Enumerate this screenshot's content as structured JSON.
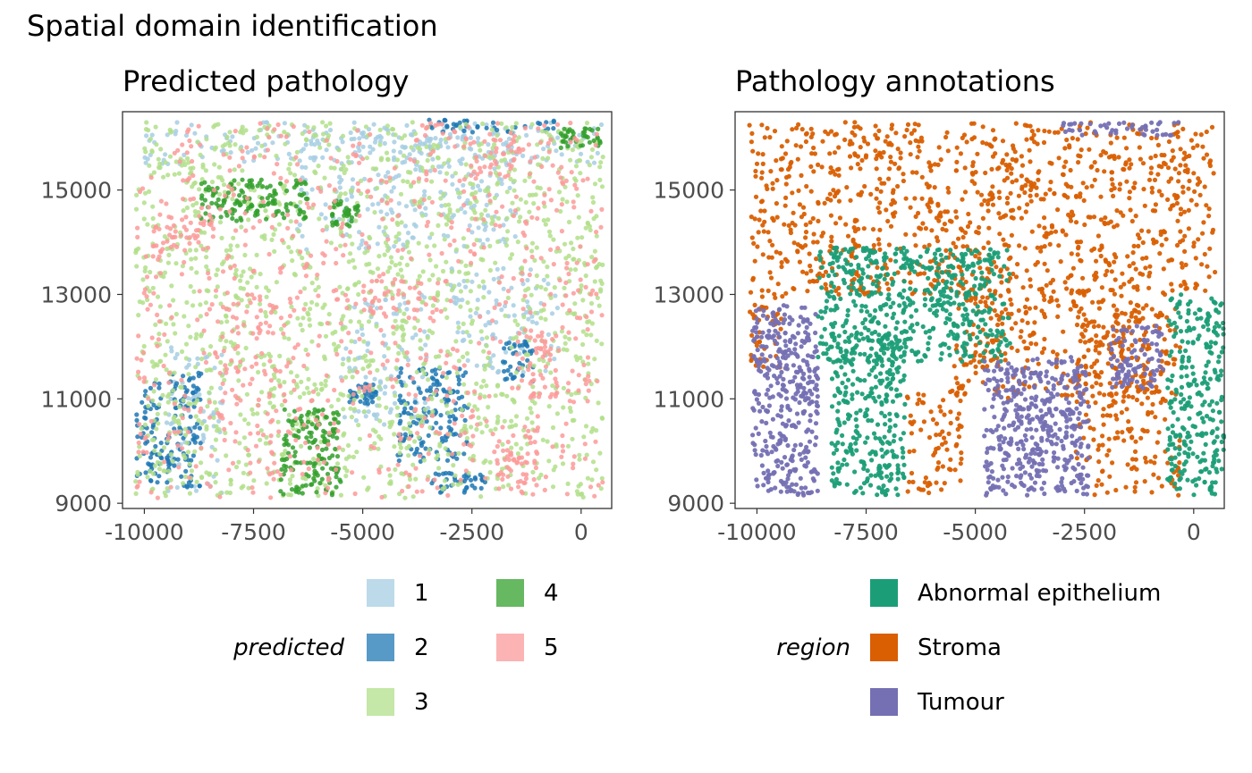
{
  "figure_title": "Spatial domain identification",
  "chart_data": [
    {
      "type": "scatter",
      "title": "Predicted pathology",
      "xlabel": "",
      "ylabel": "",
      "xlim": [
        -10500,
        700
      ],
      "ylim": [
        8900,
        16500
      ],
      "x_ticks": [
        -10000,
        -7500,
        -5000,
        -2500,
        0
      ],
      "x_tick_labels": [
        "-10000",
        "-7500",
        "-5000",
        "-2500",
        "0"
      ],
      "y_ticks": [
        9000,
        11000,
        13000,
        15000
      ],
      "y_tick_labels": [
        "9000",
        "11000",
        "13000",
        "15000"
      ],
      "grid": false,
      "legend_title": "predicted",
      "legend_position": "bottom",
      "legend_entries": [
        {
          "label": "1",
          "color": "#a6cee3"
        },
        {
          "label": "2",
          "color": "#1f78b4"
        },
        {
          "label": "3",
          "color": "#b2df8a"
        },
        {
          "label": "4",
          "color": "#33a02c"
        },
        {
          "label": "5",
          "color": "#fb9a99"
        }
      ],
      "series": [
        {
          "name": "1",
          "color": "#a6cee3",
          "regions": [
            {
              "x": [
                -10200,
                500
              ],
              "y": [
                15500,
                16300
              ]
            },
            {
              "x": [
                -6500,
                -1500
              ],
              "y": [
                13800,
                16200
              ]
            },
            {
              "x": [
                -5500,
                -3500
              ],
              "y": [
                10500,
                13000
              ]
            },
            {
              "x": [
                -9500,
                -8200
              ],
              "y": [
                9200,
                12000
              ]
            },
            {
              "x": [
                -3000,
                -500
              ],
              "y": [
                11500,
                13500
              ]
            }
          ]
        },
        {
          "name": "2",
          "color": "#1f78b4",
          "regions": [
            {
              "x": [
                -9500,
                -8700
              ],
              "y": [
                9300,
                11500
              ]
            },
            {
              "x": [
                -10200,
                -9600
              ],
              "y": [
                9400,
                11300
              ]
            },
            {
              "x": [
                -4200,
                -2600
              ],
              "y": [
                9800,
                11600
              ]
            },
            {
              "x": [
                -3500,
                -2200
              ],
              "y": [
                9200,
                9600
              ]
            },
            {
              "x": [
                -5300,
                -4700
              ],
              "y": [
                10900,
                11300
              ]
            },
            {
              "x": [
                -1800,
                -1100
              ],
              "y": [
                11300,
                12100
              ]
            },
            {
              "x": [
                -3500,
                -500
              ],
              "y": [
                16100,
                16350
              ]
            }
          ]
        },
        {
          "name": "3",
          "color": "#b2df8a",
          "regions": [
            {
              "x": [
                -10200,
                500
              ],
              "y": [
                9100,
                16300
              ]
            }
          ]
        },
        {
          "name": "4",
          "color": "#33a02c",
          "regions": [
            {
              "x": [
                -8700,
                -6200
              ],
              "y": [
                14400,
                15200
              ]
            },
            {
              "x": [
                -6900,
                -5500
              ],
              "y": [
                9150,
                10800
              ]
            },
            {
              "x": [
                -5700,
                -5100
              ],
              "y": [
                14300,
                14800
              ]
            },
            {
              "x": [
                -500,
                500
              ],
              "y": [
                15800,
                16200
              ]
            }
          ]
        },
        {
          "name": "5",
          "color": "#fb9a99",
          "regions": [
            {
              "x": [
                -8400,
                -6600
              ],
              "y": [
                10300,
                13200
              ]
            },
            {
              "x": [
                -1200,
                -500
              ],
              "y": [
                11000,
                12300
              ]
            },
            {
              "x": [
                -9800,
                -8400
              ],
              "y": [
                13800,
                14500
              ]
            },
            {
              "x": [
                -5000,
                -3200
              ],
              "y": [
                12500,
                13300
              ]
            },
            {
              "x": [
                -2700,
                -1400
              ],
              "y": [
                15200,
                16000
              ]
            },
            {
              "x": [
                -2000,
                -1000
              ],
              "y": [
                9300,
                10200
              ]
            },
            {
              "x": [
                -10200,
                500
              ],
              "y": [
                9100,
                16300
              ]
            }
          ]
        }
      ]
    },
    {
      "type": "scatter",
      "title": "Pathology annotations",
      "xlabel": "",
      "ylabel": "",
      "xlim": [
        -10500,
        700
      ],
      "ylim": [
        8900,
        16500
      ],
      "x_ticks": [
        -10000,
        -7500,
        -5000,
        -2500,
        0
      ],
      "x_tick_labels": [
        "-10000",
        "-7500",
        "-5000",
        "-2500",
        "0"
      ],
      "y_ticks": [
        9000,
        11000,
        13000,
        15000
      ],
      "y_tick_labels": [
        "9000",
        "11000",
        "13000",
        "15000"
      ],
      "grid": false,
      "legend_title": "region",
      "legend_position": "bottom",
      "legend_entries": [
        {
          "label": "Abnormal epithelium",
          "color": "#1b9e77"
        },
        {
          "label": "Stroma",
          "color": "#d95f02"
        },
        {
          "label": "Tumour",
          "color": "#7570b3"
        }
      ],
      "series": [
        {
          "name": "Stroma",
          "color": "#d95f02",
          "regions": [
            {
              "x": [
                -10200,
                500
              ],
              "y": [
                13000,
                16300
              ]
            },
            {
              "x": [
                -6600,
                -5300
              ],
              "y": [
                9150,
                11200
              ]
            },
            {
              "x": [
                -2700,
                -300
              ],
              "y": [
                9150,
                12800
              ]
            },
            {
              "x": [
                -10200,
                -9400
              ],
              "y": [
                11600,
                13000
              ]
            },
            {
              "x": [
                -5500,
                -1000
              ],
              "y": [
                11000,
                13200
              ]
            }
          ]
        },
        {
          "name": "Abnormal epithelium",
          "color": "#1b9e77",
          "regions": [
            {
              "x": [
                -8600,
                -4200
              ],
              "y": [
                11700,
                13900
              ]
            },
            {
              "x": [
                -8300,
                -6600
              ],
              "y": [
                9150,
                12200
              ]
            },
            {
              "x": [
                -600,
                700
              ],
              "y": [
                9150,
                13000
              ]
            }
          ]
        },
        {
          "name": "Tumour",
          "color": "#7570b3",
          "regions": [
            {
              "x": [
                -10100,
                -8600
              ],
              "y": [
                9150,
                12800
              ]
            },
            {
              "x": [
                -4800,
                -2400
              ],
              "y": [
                9150,
                11800
              ]
            },
            {
              "x": [
                -1900,
                -700
              ],
              "y": [
                11200,
                12400
              ]
            },
            {
              "x": [
                -3000,
                -300
              ],
              "y": [
                16050,
                16300
              ]
            }
          ]
        }
      ]
    }
  ]
}
